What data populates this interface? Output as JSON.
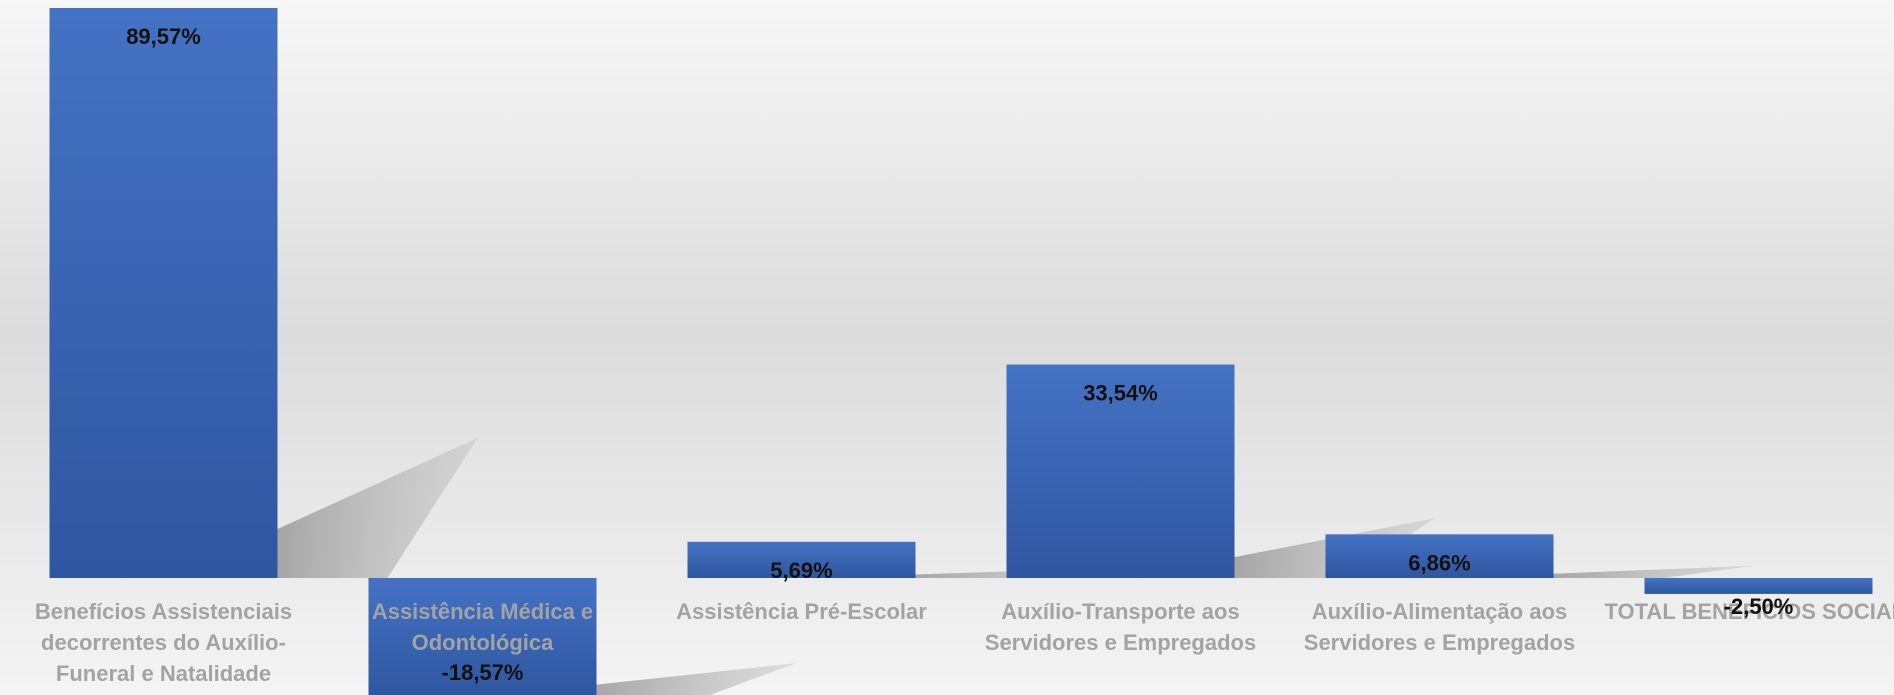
{
  "chart_data": {
    "type": "bar",
    "categories": [
      [
        "Benefícios Assistenciais",
        "decorrentes do Auxílio-",
        "Funeral e Natalidade"
      ],
      [
        "Assistência Médica e",
        "Odontológica"
      ],
      [
        "Assistência Pré-Escolar"
      ],
      [
        "Auxílio-Transporte aos",
        "Servidores e Empregados"
      ],
      [
        "Auxílio-Alimentação aos",
        "Servidores e Empregados"
      ],
      [
        "TOTAL BENEFÍCIOS SOCIAIS"
      ]
    ],
    "values": [
      89.57,
      -18.57,
      5.69,
      33.54,
      6.86,
      -2.5
    ],
    "data_labels": [
      "89,57%",
      "-18,57%",
      "5,69%",
      "33,54%",
      "6,86%",
      "-2,50%"
    ],
    "title": "",
    "xlabel": "",
    "ylabel": "",
    "ylim": [
      -18.57,
      89.57
    ],
    "grid": false,
    "legend": "none",
    "colors": {
      "bar_top": "#4472c4",
      "bar_bottom": "#2f56a0",
      "shadow": "#a6a6a6",
      "category_text": "#a3a3a3",
      "value_text": "#111111"
    }
  }
}
